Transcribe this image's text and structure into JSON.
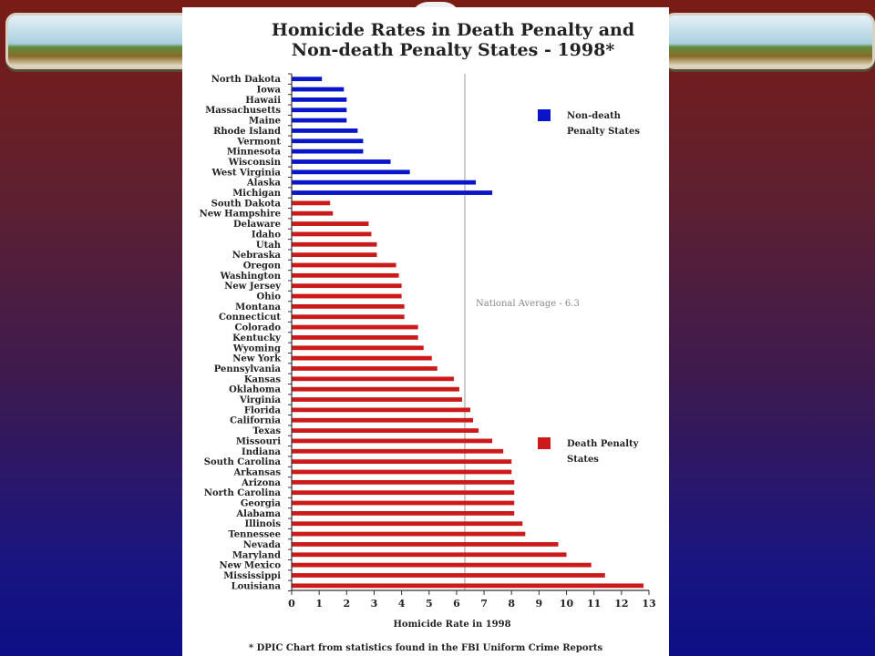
{
  "chart_data": {
    "type": "bar",
    "orientation": "horizontal",
    "title": "Homicide Rates in Death Penalty and",
    "subtitle": "Non-death Penalty States - 1998*",
    "xlabel": "Homicide Rate in 1998",
    "xlim": [
      0,
      13
    ],
    "xticks": [
      0,
      1,
      2,
      3,
      4,
      5,
      6,
      7,
      8,
      9,
      10,
      11,
      12,
      13
    ],
    "reference_line": {
      "value": 6.3,
      "label": "National Average - 6.3"
    },
    "footnote": "* DPIC Chart from statistics found in the FBI Uniform Crime Reports",
    "series": [
      {
        "name": "Non-death Penalty States",
        "color": "#0a14c8",
        "categories": [
          "North Dakota",
          "Iowa",
          "Hawaii",
          "Massachusetts",
          "Maine",
          "Rhode Island",
          "Vermont",
          "Minnesota",
          "Wisconsin",
          "West Virginia",
          "Alaska",
          "Michigan"
        ],
        "values": [
          1.1,
          1.9,
          2.0,
          2.0,
          2.0,
          2.4,
          2.6,
          2.6,
          3.6,
          4.3,
          6.7,
          7.3
        ]
      },
      {
        "name": "Death Penalty States",
        "color": "#cc1a1a",
        "categories": [
          "South Dakota",
          "New Hampshire",
          "Delaware",
          "Idaho",
          "Utah",
          "Nebraska",
          "Oregon",
          "Washington",
          "New Jersey",
          "Ohio",
          "Montana",
          "Connecticut",
          "Colorado",
          "Kentucky",
          "Wyoming",
          "New York",
          "Pennsylvania",
          "Kansas",
          "Oklahoma",
          "Virginia",
          "Florida",
          "California",
          "Texas",
          "Missouri",
          "Indiana",
          "South Carolina",
          "Arkansas",
          "Arizona",
          "North Carolina",
          "Georgia",
          "Alabama",
          "Illinois",
          "Tennessee",
          "Nevada",
          "Maryland",
          "New Mexico",
          "Mississippi",
          "Louisiana"
        ],
        "values": [
          1.4,
          1.5,
          2.8,
          2.9,
          3.1,
          3.1,
          3.8,
          3.9,
          4.0,
          4.0,
          4.1,
          4.1,
          4.6,
          4.6,
          4.8,
          5.1,
          5.3,
          5.9,
          6.1,
          6.2,
          6.5,
          6.6,
          6.8,
          7.3,
          7.7,
          8.0,
          8.0,
          8.1,
          8.1,
          8.1,
          8.1,
          8.4,
          8.5,
          9.7,
          10.0,
          10.9,
          11.4,
          12.8
        ]
      }
    ],
    "legend": [
      {
        "label_line1": "Non-death",
        "label_line2": "Penalty States",
        "color": "#0a14c8"
      },
      {
        "label_line1": "Death Penalty",
        "label_line2": "States",
        "color": "#cc1a1a"
      }
    ],
    "legend_placement": "right"
  }
}
